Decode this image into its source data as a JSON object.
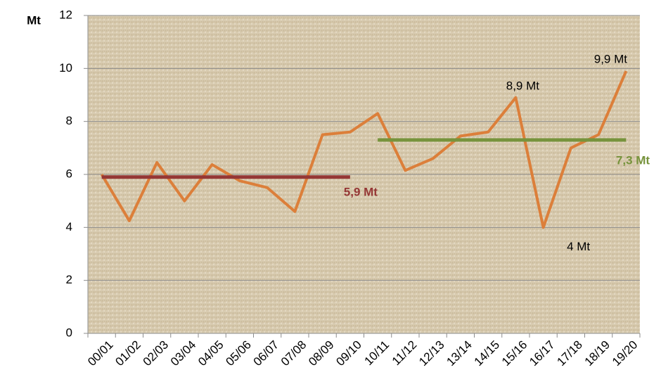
{
  "chart_data": {
    "type": "line",
    "y_label": "Mt",
    "categories": [
      "00/01",
      "01/02",
      "02/03",
      "03/04",
      "04/05",
      "05/06",
      "06/07",
      "07/08",
      "08/09",
      "09/10",
      "10/11",
      "11/12",
      "12/13",
      "13/14",
      "14/15",
      "15/16",
      "16/17",
      "17/18",
      "18/19",
      "19/20"
    ],
    "series": [
      {
        "color": "#dc7f3a",
        "values": [
          6.0,
          4.25,
          6.45,
          5.0,
          6.37,
          5.76,
          5.5,
          4.6,
          7.5,
          7.6,
          8.3,
          6.15,
          6.6,
          7.45,
          7.6,
          8.9,
          4.0,
          7.0,
          7.5,
          9.9
        ],
        "value_labels": [
          null,
          null,
          null,
          null,
          null,
          null,
          null,
          null,
          null,
          null,
          null,
          null,
          null,
          null,
          null,
          "8,9 Mt",
          "4 Mt",
          null,
          null,
          "9,9 Mt"
        ]
      },
      {
        "name": "5,9 Mt",
        "color": "#953735",
        "values": [
          5.9,
          5.9,
          5.9,
          5.9,
          5.9,
          5.9,
          5.9,
          5.9,
          5.9,
          5.9,
          null,
          null,
          null,
          null,
          null,
          null,
          null,
          null,
          null,
          null
        ]
      },
      {
        "name": "7,3 Mt",
        "color": "#77933c",
        "values": [
          null,
          null,
          null,
          null,
          null,
          null,
          null,
          null,
          null,
          null,
          7.3,
          7.3,
          7.3,
          7.3,
          7.3,
          7.3,
          7.3,
          7.3,
          7.3,
          7.3
        ]
      }
    ],
    "ylim": [
      0,
      12
    ],
    "yticks": [
      0,
      2,
      4,
      6,
      8,
      10,
      12
    ],
    "grid": true
  }
}
